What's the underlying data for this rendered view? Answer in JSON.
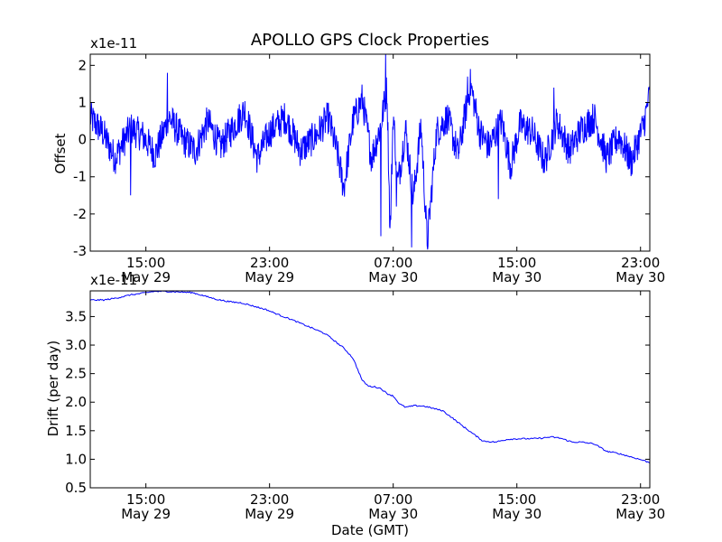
{
  "chart_data": {
    "title": "APOLLO GPS Clock Properties",
    "xlabel": "Date (GMT)",
    "x_range_hours": [
      11.4,
      47.6
    ],
    "x_ticks": [
      {
        "hour": 15,
        "time": "15:00",
        "date": "May 29"
      },
      {
        "hour": 23,
        "time": "23:00",
        "date": "May 29"
      },
      {
        "hour": 31,
        "time": "07:00",
        "date": "May 30"
      },
      {
        "hour": 39,
        "time": "15:00",
        "date": "May 30"
      },
      {
        "hour": 47,
        "time": "23:00",
        "date": "May 30"
      }
    ],
    "panels": [
      {
        "name": "offset",
        "type": "line",
        "ylabel": "Offset",
        "scale_label": "x1e-11",
        "ylim": [
          -3,
          2.3
        ],
        "y_ticks": [
          2,
          1,
          0,
          -1,
          -2,
          -3
        ],
        "y_tick_labels": [
          "2",
          "1",
          "0",
          "-1",
          "-2",
          "-3"
        ],
        "x": [
          11.4,
          12.2,
          13.0,
          14.0,
          14.8,
          15.6,
          16.5,
          17.4,
          18.2,
          19.0,
          19.8,
          20.6,
          21.4,
          22.2,
          23.0,
          24.0,
          25.0,
          26.0,
          26.8,
          27.4,
          27.8,
          28.4,
          29.0,
          29.6,
          30.2,
          30.6,
          30.8,
          31.0,
          31.3,
          31.8,
          32.3,
          32.8,
          33.2,
          33.8,
          34.5,
          35.2,
          36.0,
          36.6,
          37.2,
          38.0,
          38.6,
          39.2,
          40.0,
          40.8,
          41.6,
          42.4,
          43.2,
          44.0,
          44.8,
          45.6,
          46.4,
          47.2,
          47.6
        ],
        "y": [
          0.6,
          0.2,
          -0.5,
          0.3,
          0.1,
          -0.4,
          0.6,
          0.0,
          -0.3,
          0.5,
          -0.2,
          0.3,
          0.8,
          -0.5,
          0.2,
          0.6,
          -0.3,
          0.1,
          0.6,
          -0.4,
          -1.3,
          0.5,
          1.1,
          -0.5,
          0.4,
          1.4,
          -2.6,
          0.7,
          -1.2,
          0.3,
          -1.6,
          0.4,
          -2.8,
          0.2,
          0.6,
          -0.4,
          1.5,
          0.2,
          -0.2,
          0.5,
          -0.7,
          0.4,
          0.2,
          -0.6,
          0.5,
          -0.3,
          0.3,
          0.6,
          -0.5,
          0.1,
          -0.6,
          0.4,
          1.2
        ],
        "noise": 0.45,
        "spikes": [
          {
            "hour": 14.0,
            "value": -1.5
          },
          {
            "hour": 16.4,
            "value": 1.8
          },
          {
            "hour": 30.2,
            "value": -2.6
          },
          {
            "hour": 30.5,
            "value": 2.3
          },
          {
            "hour": 31.2,
            "value": -1.8
          },
          {
            "hour": 32.2,
            "value": -2.9
          },
          {
            "hour": 33.2,
            "value": -2.85
          },
          {
            "hour": 35.8,
            "value": 1.7
          },
          {
            "hour": 37.8,
            "value": -1.6
          },
          {
            "hour": 41.4,
            "value": 1.4
          },
          {
            "hour": 47.5,
            "value": 1.2
          }
        ]
      },
      {
        "name": "drift",
        "type": "line",
        "ylabel": "Drift (per day)",
        "scale_label": "x1e-11",
        "ylim": [
          0.5,
          3.95
        ],
        "y_ticks": [
          3.5,
          3.0,
          2.5,
          2.0,
          1.5,
          1.0,
          0.5
        ],
        "y_tick_labels": [
          "3.5",
          "3.0",
          "2.5",
          "2.0",
          "1.5",
          "1.0",
          "0.5"
        ],
        "x": [
          11.4,
          12.3,
          13.2,
          14.0,
          14.8,
          15.5,
          16.4,
          17.2,
          18.0,
          18.8,
          19.6,
          20.4,
          21.2,
          22.0,
          22.8,
          23.6,
          24.4,
          25.2,
          26.0,
          26.6,
          27.0,
          27.4,
          27.8,
          28.4,
          29.0,
          29.4,
          29.8,
          30.2,
          30.6,
          31.0,
          31.4,
          31.8,
          32.4,
          33.0,
          33.6,
          34.2,
          34.8,
          35.6,
          36.2,
          36.8,
          37.6,
          38.4,
          39.2,
          40.0,
          40.6,
          41.2,
          41.8,
          42.6,
          43.2,
          44.0,
          44.8,
          45.6,
          46.4,
          47.2,
          47.6
        ],
        "y": [
          3.79,
          3.79,
          3.83,
          3.88,
          3.91,
          3.94,
          3.94,
          3.93,
          3.92,
          3.86,
          3.8,
          3.76,
          3.74,
          3.68,
          3.62,
          3.53,
          3.45,
          3.36,
          3.27,
          3.2,
          3.12,
          3.03,
          2.95,
          2.77,
          2.38,
          2.28,
          2.27,
          2.24,
          2.15,
          2.11,
          1.97,
          1.91,
          1.94,
          1.93,
          1.89,
          1.85,
          1.73,
          1.56,
          1.44,
          1.32,
          1.3,
          1.35,
          1.36,
          1.36,
          1.37,
          1.39,
          1.37,
          1.3,
          1.3,
          1.27,
          1.14,
          1.1,
          1.04,
          0.98,
          0.94
        ],
        "noise": 0.012
      }
    ]
  }
}
